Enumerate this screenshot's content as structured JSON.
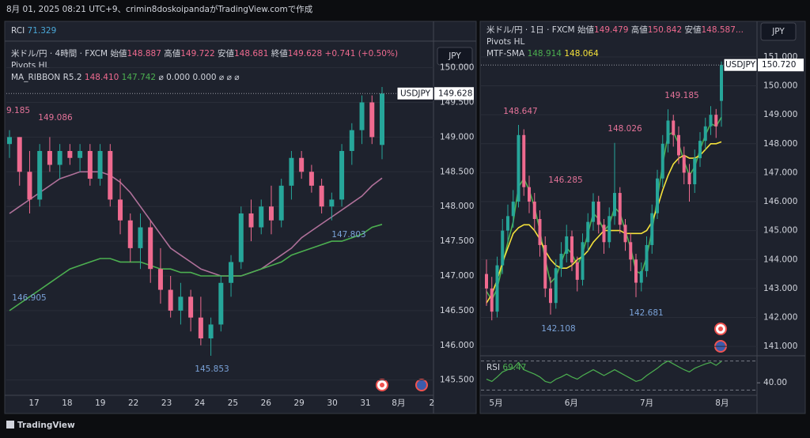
{
  "header": {
    "caption": "8月 01, 2025 08:21 UTC+9、crimin8doskoipandaがTradingView.comで作成"
  },
  "footer": {
    "brand": "TradingView"
  },
  "left": {
    "rci": {
      "name": "RCI",
      "value": "71.329"
    },
    "legend": {
      "symbol": "米ドル/円 · 4時間 · FXCM",
      "open_label": "始値",
      "open": "148.887",
      "high_label": "高値",
      "high": "149.722",
      "low_label": "安値",
      "low": "148.681",
      "close_label": "終値",
      "close": "149.628",
      "change": "+0.741 (+0.50%)"
    },
    "pivots_name": "Pivots HL",
    "ribbon": {
      "name": "MA_RIBBON R5.2",
      "v1": "148.410",
      "v2": "147.742",
      "extra": [
        "⌀",
        "0.000",
        "0.000",
        "⌀",
        "⌀",
        "⌀"
      ]
    },
    "currency": "JPY",
    "last": {
      "symbol": "USDJPY",
      "price": "149.628"
    },
    "pivots": [
      "9.185",
      "149.086",
      "146.905",
      "145.853",
      "147.803"
    ],
    "chart": {
      "type": "candlestick",
      "up_color": "#26a69a",
      "down_color": "#ef6a8f",
      "ylim": [
        145.28,
        150.36
      ],
      "yticks": [
        {
          "value": 150,
          "label": "150.000"
        },
        {
          "value": 149.5,
          "label": "149.500"
        },
        {
          "value": 149,
          "label": "149.000"
        },
        {
          "value": 148.5,
          "label": "148.500"
        },
        {
          "value": 148,
          "label": "148.000"
        },
        {
          "value": 147.5,
          "label": "147.500"
        },
        {
          "value": 147,
          "label": "147.000"
        },
        {
          "value": 146.5,
          "label": "146.500"
        },
        {
          "value": 146,
          "label": "146.000"
        },
        {
          "value": 145.5,
          "label": "145.500"
        }
      ],
      "dates": [
        "17",
        "18",
        "19",
        "22",
        "23",
        "24",
        "25",
        "26",
        "29",
        "30",
        "31",
        "8月",
        "2"
      ],
      "candles": [
        [
          148.9,
          149.1,
          148.7,
          149.0
        ],
        [
          149.0,
          149.0,
          148.3,
          148.5
        ],
        [
          148.5,
          148.8,
          147.9,
          148.1
        ],
        [
          148.1,
          148.9,
          148.0,
          148.8
        ],
        [
          148.8,
          149.0,
          148.5,
          148.6
        ],
        [
          148.6,
          148.9,
          148.4,
          148.8
        ],
        [
          148.8,
          148.9,
          148.6,
          148.7
        ],
        [
          148.7,
          148.9,
          148.5,
          148.8
        ],
        [
          148.8,
          148.9,
          148.3,
          148.4
        ],
        [
          148.4,
          148.9,
          148.3,
          148.8
        ],
        [
          148.8,
          148.9,
          148.0,
          148.1
        ],
        [
          148.1,
          148.4,
          147.6,
          147.8
        ],
        [
          147.8,
          147.9,
          147.2,
          147.4
        ],
        [
          147.4,
          147.9,
          147.1,
          147.7
        ],
        [
          147.7,
          147.8,
          146.9,
          147.1
        ],
        [
          147.1,
          147.4,
          146.6,
          146.8
        ],
        [
          146.8,
          147.0,
          146.4,
          146.5
        ],
        [
          146.5,
          146.9,
          146.3,
          146.7
        ],
        [
          146.7,
          146.8,
          146.2,
          146.4
        ],
        [
          146.4,
          146.7,
          146.0,
          146.1
        ],
        [
          146.1,
          146.4,
          145.85,
          146.3
        ],
        [
          146.3,
          147.0,
          146.2,
          146.9
        ],
        [
          146.9,
          147.3,
          146.7,
          147.2
        ],
        [
          147.2,
          148.0,
          147.1,
          147.9
        ],
        [
          147.9,
          148.1,
          147.5,
          147.7
        ],
        [
          147.7,
          148.1,
          147.6,
          148.0
        ],
        [
          148.0,
          148.3,
          147.6,
          147.8
        ],
        [
          147.8,
          148.4,
          147.7,
          148.3
        ],
        [
          148.3,
          148.8,
          148.1,
          148.7
        ],
        [
          148.7,
          148.8,
          148.4,
          148.5
        ],
        [
          148.5,
          148.6,
          148.2,
          148.3
        ],
        [
          148.3,
          148.4,
          147.9,
          148.0
        ],
        [
          148.0,
          148.2,
          147.8,
          148.1
        ],
        [
          148.1,
          148.9,
          148.0,
          148.8
        ],
        [
          148.8,
          149.2,
          148.6,
          149.1
        ],
        [
          149.1,
          149.6,
          148.9,
          149.5
        ],
        [
          149.5,
          149.6,
          148.9,
          149.0
        ],
        [
          148.887,
          149.722,
          148.681,
          149.628
        ]
      ],
      "lines": [
        {
          "color": "#b0719a",
          "values": [
            147.9,
            148.0,
            148.1,
            148.2,
            148.3,
            148.4,
            148.45,
            148.5,
            148.5,
            148.5,
            148.45,
            148.35,
            148.2,
            148.0,
            147.8,
            147.6,
            147.4,
            147.3,
            147.2,
            147.1,
            147.05,
            147.0,
            147.0,
            147.0,
            147.05,
            147.1,
            147.2,
            147.3,
            147.4,
            147.55,
            147.65,
            147.75,
            147.85,
            147.95,
            148.05,
            148.15,
            148.3,
            148.41
          ]
        },
        {
          "color": "#4caf50",
          "values": [
            146.5,
            146.6,
            146.7,
            146.8,
            146.9,
            147.0,
            147.1,
            147.15,
            147.2,
            147.25,
            147.25,
            147.2,
            147.2,
            147.2,
            147.15,
            147.1,
            147.1,
            147.05,
            147.05,
            147.0,
            147.0,
            147.0,
            147.0,
            147.0,
            147.05,
            147.1,
            147.15,
            147.2,
            147.3,
            147.35,
            147.4,
            147.45,
            147.5,
            147.5,
            147.55,
            147.6,
            147.7,
            147.742
          ]
        }
      ]
    }
  },
  "right": {
    "legend": {
      "symbol": "米ドル/円 · 1日 · FXCM",
      "open_label": "始値",
      "open": "149.479",
      "high_label": "高値",
      "high": "150.842",
      "low_label": "安値",
      "low": "148.587..."
    },
    "pivots_name": "Pivots HL",
    "sma": {
      "name": "MTF-SMA",
      "v1": "148.914",
      "v2": "148.064"
    },
    "currency": "JPY",
    "last": {
      "symbol": "USDJPY",
      "price": "150.720"
    },
    "pivots": [
      "148.647",
      "146.285",
      "148.026",
      "149.185",
      "142.108",
      "142.681"
    ],
    "chart": {
      "type": "candlestick",
      "up_color": "#26a69a",
      "down_color": "#ef6a8f",
      "ylim": [
        140.73,
        152.2
      ],
      "yticks": [
        {
          "value": 151,
          "label": "151.000"
        },
        {
          "value": 150,
          "label": "150.000"
        },
        {
          "value": 149,
          "label": "149.000"
        },
        {
          "value": 148,
          "label": "148.000"
        },
        {
          "value": 147,
          "label": "147.000"
        },
        {
          "value": 146,
          "label": "146.000"
        },
        {
          "value": 145,
          "label": "145.000"
        },
        {
          "value": 144,
          "label": "144.000"
        },
        {
          "value": 143,
          "label": "143.000"
        },
        {
          "value": 142,
          "label": "142.000"
        },
        {
          "value": 141,
          "label": "141.000"
        }
      ],
      "dates": [
        "5月",
        "6月",
        "7月",
        "8月"
      ],
      "candles": [
        [
          143.5,
          144.0,
          142.4,
          143.0
        ],
        [
          143.0,
          143.4,
          141.9,
          142.2
        ],
        [
          142.2,
          144.1,
          142.0,
          143.8
        ],
        [
          143.8,
          145.4,
          143.5,
          145.0
        ],
        [
          145.0,
          145.9,
          144.6,
          145.5
        ],
        [
          145.5,
          146.4,
          145.1,
          146.0
        ],
        [
          146.0,
          148.65,
          145.8,
          148.3
        ],
        [
          148.3,
          148.5,
          146.2,
          146.5
        ],
        [
          146.5,
          146.9,
          145.6,
          146.0
        ],
        [
          146.0,
          146.3,
          145.0,
          145.4
        ],
        [
          145.4,
          145.7,
          144.1,
          144.5
        ],
        [
          144.5,
          144.8,
          142.7,
          143.0
        ],
        [
          143.0,
          143.4,
          142.1,
          142.5
        ],
        [
          142.5,
          144.0,
          142.3,
          143.7
        ],
        [
          143.7,
          144.6,
          143.4,
          144.2
        ],
        [
          144.2,
          145.2,
          143.9,
          144.8
        ],
        [
          144.8,
          145.0,
          143.6,
          143.9
        ],
        [
          143.9,
          144.1,
          142.9,
          143.3
        ],
        [
          143.3,
          144.9,
          143.1,
          144.6
        ],
        [
          144.6,
          145.6,
          144.3,
          145.3
        ],
        [
          145.3,
          146.29,
          145.0,
          146.0
        ],
        [
          146.0,
          146.2,
          144.9,
          145.2
        ],
        [
          145.2,
          145.4,
          144.2,
          144.6
        ],
        [
          144.6,
          145.8,
          144.4,
          145.5
        ],
        [
          145.5,
          148.03,
          145.2,
          146.3
        ],
        [
          146.3,
          146.5,
          144.9,
          145.2
        ],
        [
          145.2,
          145.4,
          144.3,
          144.6
        ],
        [
          144.6,
          144.9,
          143.6,
          144.0
        ],
        [
          144.0,
          144.2,
          142.7,
          143.2
        ],
        [
          143.2,
          143.9,
          142.9,
          143.6
        ],
        [
          143.6,
          144.8,
          143.4,
          144.5
        ],
        [
          144.5,
          145.9,
          144.2,
          145.6
        ],
        [
          145.6,
          147.1,
          145.4,
          146.8
        ],
        [
          146.8,
          148.3,
          146.5,
          148.0
        ],
        [
          148.0,
          149.19,
          147.7,
          148.8
        ],
        [
          148.8,
          149.0,
          147.9,
          148.3
        ],
        [
          148.3,
          148.6,
          147.3,
          147.6
        ],
        [
          147.6,
          147.9,
          146.6,
          147.0
        ],
        [
          147.0,
          147.3,
          146.0,
          146.6
        ],
        [
          146.6,
          147.8,
          146.3,
          147.5
        ],
        [
          147.5,
          148.4,
          147.2,
          148.1
        ],
        [
          148.1,
          148.9,
          147.8,
          148.6
        ],
        [
          148.6,
          149.3,
          148.3,
          149.0
        ],
        [
          149.0,
          149.2,
          148.2,
          148.6
        ],
        [
          149.479,
          150.842,
          148.587,
          150.72
        ]
      ],
      "lines": [
        {
          "color": "#4caf50",
          "values": [
            142.9,
            142.6,
            143.0,
            143.8,
            144.6,
            145.3,
            146.5,
            146.8,
            146.4,
            145.8,
            145.0,
            144.0,
            143.2,
            143.4,
            143.9,
            144.4,
            144.2,
            143.8,
            144.2,
            144.9,
            145.6,
            145.4,
            145.0,
            145.2,
            145.8,
            145.6,
            145.0,
            144.4,
            143.6,
            143.5,
            144.1,
            145.0,
            146.1,
            147.3,
            148.3,
            148.4,
            148.0,
            147.4,
            146.9,
            147.2,
            147.8,
            148.3,
            148.7,
            148.6,
            148.914
          ]
        },
        {
          "color": "#f5e23b",
          "values": [
            142.5,
            142.8,
            143.3,
            143.9,
            144.4,
            144.9,
            145.1,
            145.2,
            145.2,
            145.0,
            144.7,
            144.3,
            144.0,
            143.8,
            143.7,
            143.7,
            143.8,
            144.0,
            144.1,
            144.3,
            144.6,
            144.8,
            145.0,
            145.0,
            145.0,
            145.0,
            144.9,
            144.9,
            144.9,
            144.9,
            145.0,
            145.3,
            145.8,
            146.4,
            146.9,
            147.3,
            147.5,
            147.6,
            147.5,
            147.5,
            147.6,
            147.8,
            148.0,
            148.0,
            148.064
          ]
        }
      ]
    },
    "rsi": {
      "name": "RSI",
      "value": "69.47",
      "color": "#4caf50",
      "ylim": [
        25,
        75
      ],
      "yticks": [
        {
          "value": 40,
          "label": "40.00"
        }
      ],
      "levels": [
        70,
        30
      ],
      "values": [
        45,
        42,
        48,
        55,
        58,
        60,
        68,
        58,
        55,
        52,
        48,
        42,
        40,
        45,
        48,
        52,
        48,
        45,
        50,
        54,
        58,
        54,
        50,
        54,
        58,
        54,
        50,
        46,
        42,
        44,
        50,
        55,
        60,
        66,
        70,
        66,
        62,
        58,
        55,
        60,
        63,
        66,
        68,
        64,
        69.47
      ]
    }
  }
}
